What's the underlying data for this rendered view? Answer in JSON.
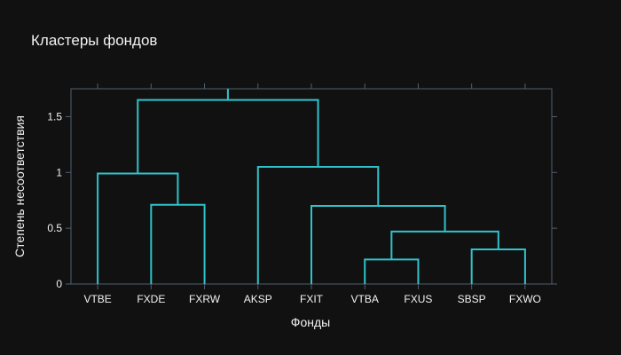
{
  "chart_data": {
    "type": "dendrogram",
    "title": "Кластеры фондов",
    "xlabel": "Фонды",
    "ylabel": "Степень несоответствия",
    "categories": [
      "VTBE",
      "FXDE",
      "FXRW",
      "AKSP",
      "FXIT",
      "VTBA",
      "FXUS",
      "SBSP",
      "FXWO"
    ],
    "ylim": [
      0,
      1.75
    ],
    "yticks": [
      0,
      0.5,
      1,
      1.5
    ],
    "ytick_labels": [
      "0",
      "0.5",
      "1",
      "1.5"
    ],
    "line_color": "#2ec4cc",
    "links": [
      {
        "x": [
          1,
          1,
          2,
          2
        ],
        "y": [
          0,
          0.71,
          0.71,
          0
        ]
      },
      {
        "x": [
          0,
          0,
          1.5,
          1.5
        ],
        "y": [
          0,
          0.99,
          0.99,
          0.71
        ]
      },
      {
        "x": [
          5,
          5,
          6,
          6
        ],
        "y": [
          0,
          0.22,
          0.22,
          0
        ]
      },
      {
        "x": [
          7,
          7,
          8,
          8
        ],
        "y": [
          0,
          0.31,
          0.31,
          0
        ]
      },
      {
        "x": [
          5.5,
          5.5,
          7.5,
          7.5
        ],
        "y": [
          0.22,
          0.47,
          0.47,
          0.31
        ]
      },
      {
        "x": [
          4,
          4,
          6.5,
          6.5
        ],
        "y": [
          0,
          0.7,
          0.7,
          0.47
        ]
      },
      {
        "x": [
          3,
          3,
          5.25,
          5.25
        ],
        "y": [
          0,
          1.05,
          1.05,
          0.7
        ]
      },
      {
        "x": [
          0.75,
          0.75,
          4.125,
          4.125
        ],
        "y": [
          0.99,
          1.65,
          1.65,
          1.05
        ]
      },
      {
        "x": [
          2.4375,
          2.4375,
          2.4375,
          2.4375
        ],
        "y": [
          1.65,
          1.75,
          1.75,
          1.65
        ]
      }
    ]
  }
}
